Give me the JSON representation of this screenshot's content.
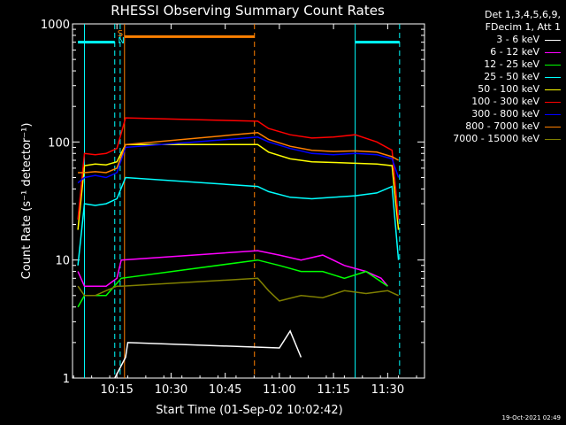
{
  "chart_data": {
    "type": "line",
    "title": "RHESSI Observing Summary Count Rates",
    "xlabel": "Start Time (01-Sep-02 10:02:42)",
    "ylabel": "Count Rate (s⁻¹ detector⁻¹)",
    "yscale": "log",
    "ylim": [
      1,
      1000
    ],
    "xlim_minutes": [
      10.07,
      11.67
    ],
    "x_ticks": [
      "10:15",
      "10:30",
      "10:45",
      "11:00",
      "11:15",
      "11:30"
    ],
    "x_tick_hours": [
      10.25,
      10.5,
      10.75,
      11.0,
      11.25,
      11.5
    ],
    "y_ticks": [
      "1",
      "10",
      "100",
      "1000"
    ],
    "y_tick_values": [
      1,
      10,
      100,
      1000
    ],
    "legend_header": [
      "Det 1,3,4,5,6,9,",
      "FDecim 1, Att 1"
    ],
    "series": [
      {
        "name": "3 - 6 keV",
        "color": "#ffffff",
        "x": [
          10.24,
          10.29,
          10.3,
          11.0,
          11.05,
          11.1
        ],
        "y": [
          1,
          1.5,
          2.0,
          1.8,
          2.5,
          1.5
        ]
      },
      {
        "name": "6 - 12 keV",
        "color": "#ff00ff",
        "x": [
          10.07,
          10.1,
          10.2,
          10.25,
          10.27,
          10.9,
          11.0,
          11.1,
          11.2,
          11.3,
          11.4,
          11.47,
          11.5
        ],
        "y": [
          8,
          6,
          6,
          7,
          10,
          12,
          11,
          10,
          11,
          9,
          8,
          7,
          6
        ]
      },
      {
        "name": "12 - 25 keV",
        "color": "#00ff00",
        "x": [
          10.07,
          10.1,
          10.2,
          10.27,
          10.9,
          11.0,
          11.1,
          11.2,
          11.3,
          11.4,
          11.5
        ],
        "y": [
          4,
          5,
          5,
          7,
          10,
          9,
          8,
          8,
          7,
          8,
          6
        ]
      },
      {
        "name": "25 - 50 keV",
        "color": "#00ffff",
        "x": [
          10.07,
          10.1,
          10.15,
          10.2,
          10.25,
          10.29,
          10.9,
          10.95,
          11.05,
          11.15,
          11.25,
          11.35,
          11.45,
          11.52,
          11.55
        ],
        "y": [
          9,
          30,
          29,
          30,
          33,
          50,
          42,
          38,
          34,
          33,
          34,
          35,
          37,
          42,
          10
        ]
      },
      {
        "name": "50 - 100 keV",
        "color": "#ffff00",
        "x": [
          10.07,
          10.1,
          10.15,
          10.2,
          10.25,
          10.29,
          10.9,
          10.95,
          11.05,
          11.15,
          11.25,
          11.35,
          11.45,
          11.52,
          11.55
        ],
        "y": [
          18,
          63,
          65,
          64,
          68,
          95,
          95,
          82,
          72,
          68,
          67,
          66,
          65,
          63,
          18
        ]
      },
      {
        "name": "100 - 300 keV",
        "color": "#ff0000",
        "x": [
          10.07,
          10.1,
          10.15,
          10.2,
          10.25,
          10.29,
          10.9,
          10.95,
          11.05,
          11.15,
          11.25,
          11.35,
          11.45,
          11.52,
          11.55
        ],
        "y": [
          22,
          80,
          78,
          80,
          88,
          160,
          150,
          130,
          115,
          108,
          110,
          115,
          100,
          85,
          22
        ]
      },
      {
        "name": "300 - 800 keV",
        "color": "#0000ff",
        "x": [
          10.07,
          10.1,
          10.15,
          10.2,
          10.25,
          10.29,
          10.9,
          10.95,
          11.05,
          11.15,
          11.25,
          11.35,
          11.45,
          11.52,
          11.55
        ],
        "y": [
          45,
          50,
          52,
          50,
          55,
          90,
          110,
          100,
          88,
          80,
          78,
          80,
          78,
          72,
          50
        ]
      },
      {
        "name": "800 - 7000 keV",
        "color": "#ff8000",
        "x": [
          10.07,
          10.1,
          10.15,
          10.2,
          10.25,
          10.29,
          10.9,
          10.95,
          11.05,
          11.15,
          11.25,
          11.35,
          11.45,
          11.52,
          11.55
        ],
        "y": [
          55,
          55,
          56,
          55,
          60,
          95,
          120,
          105,
          92,
          85,
          83,
          84,
          82,
          75,
          70
        ]
      },
      {
        "name": "7000 - 15000 keV",
        "color": "#808000",
        "x": [
          10.07,
          10.1,
          10.15,
          10.2,
          10.25,
          10.27,
          10.9,
          10.95,
          11.0,
          11.1,
          11.2,
          11.3,
          11.4,
          11.5,
          11.55
        ],
        "y": [
          6,
          5,
          5,
          5.5,
          6,
          6,
          7,
          5.5,
          4.5,
          5,
          4.8,
          5.5,
          5.2,
          5.5,
          5
        ]
      }
    ],
    "verticals": [
      {
        "x": 10.1,
        "color": "#00ffff",
        "style": "solid"
      },
      {
        "x": 10.24,
        "color": "#00ffff",
        "style": "dashed"
      },
      {
        "x": 10.265,
        "color": "#00ffff",
        "style": "dashed"
      },
      {
        "x": 10.285,
        "color": "#ff8000",
        "style": "solid"
      },
      {
        "x": 10.885,
        "color": "#ff8000",
        "style": "dashed"
      },
      {
        "x": 11.35,
        "color": "#00ffff",
        "style": "solid"
      },
      {
        "x": 11.555,
        "color": "#00ffff",
        "style": "dashed"
      }
    ],
    "bars": [
      {
        "x0": 10.07,
        "x1": 10.24,
        "y": 700,
        "color": "#00ffff"
      },
      {
        "x0": 10.285,
        "x1": 10.885,
        "y": 780,
        "color": "#ff8000"
      },
      {
        "x0": 11.35,
        "x1": 11.555,
        "y": 700,
        "color": "#00ffff"
      }
    ],
    "markers": [
      {
        "text": "S",
        "x": 10.265,
        "color": "#ff8000"
      },
      {
        "text": "N",
        "x": 10.27,
        "color": "#00ffff"
      }
    ]
  },
  "footer_timestamp": "19-Oct-2021 02:49"
}
